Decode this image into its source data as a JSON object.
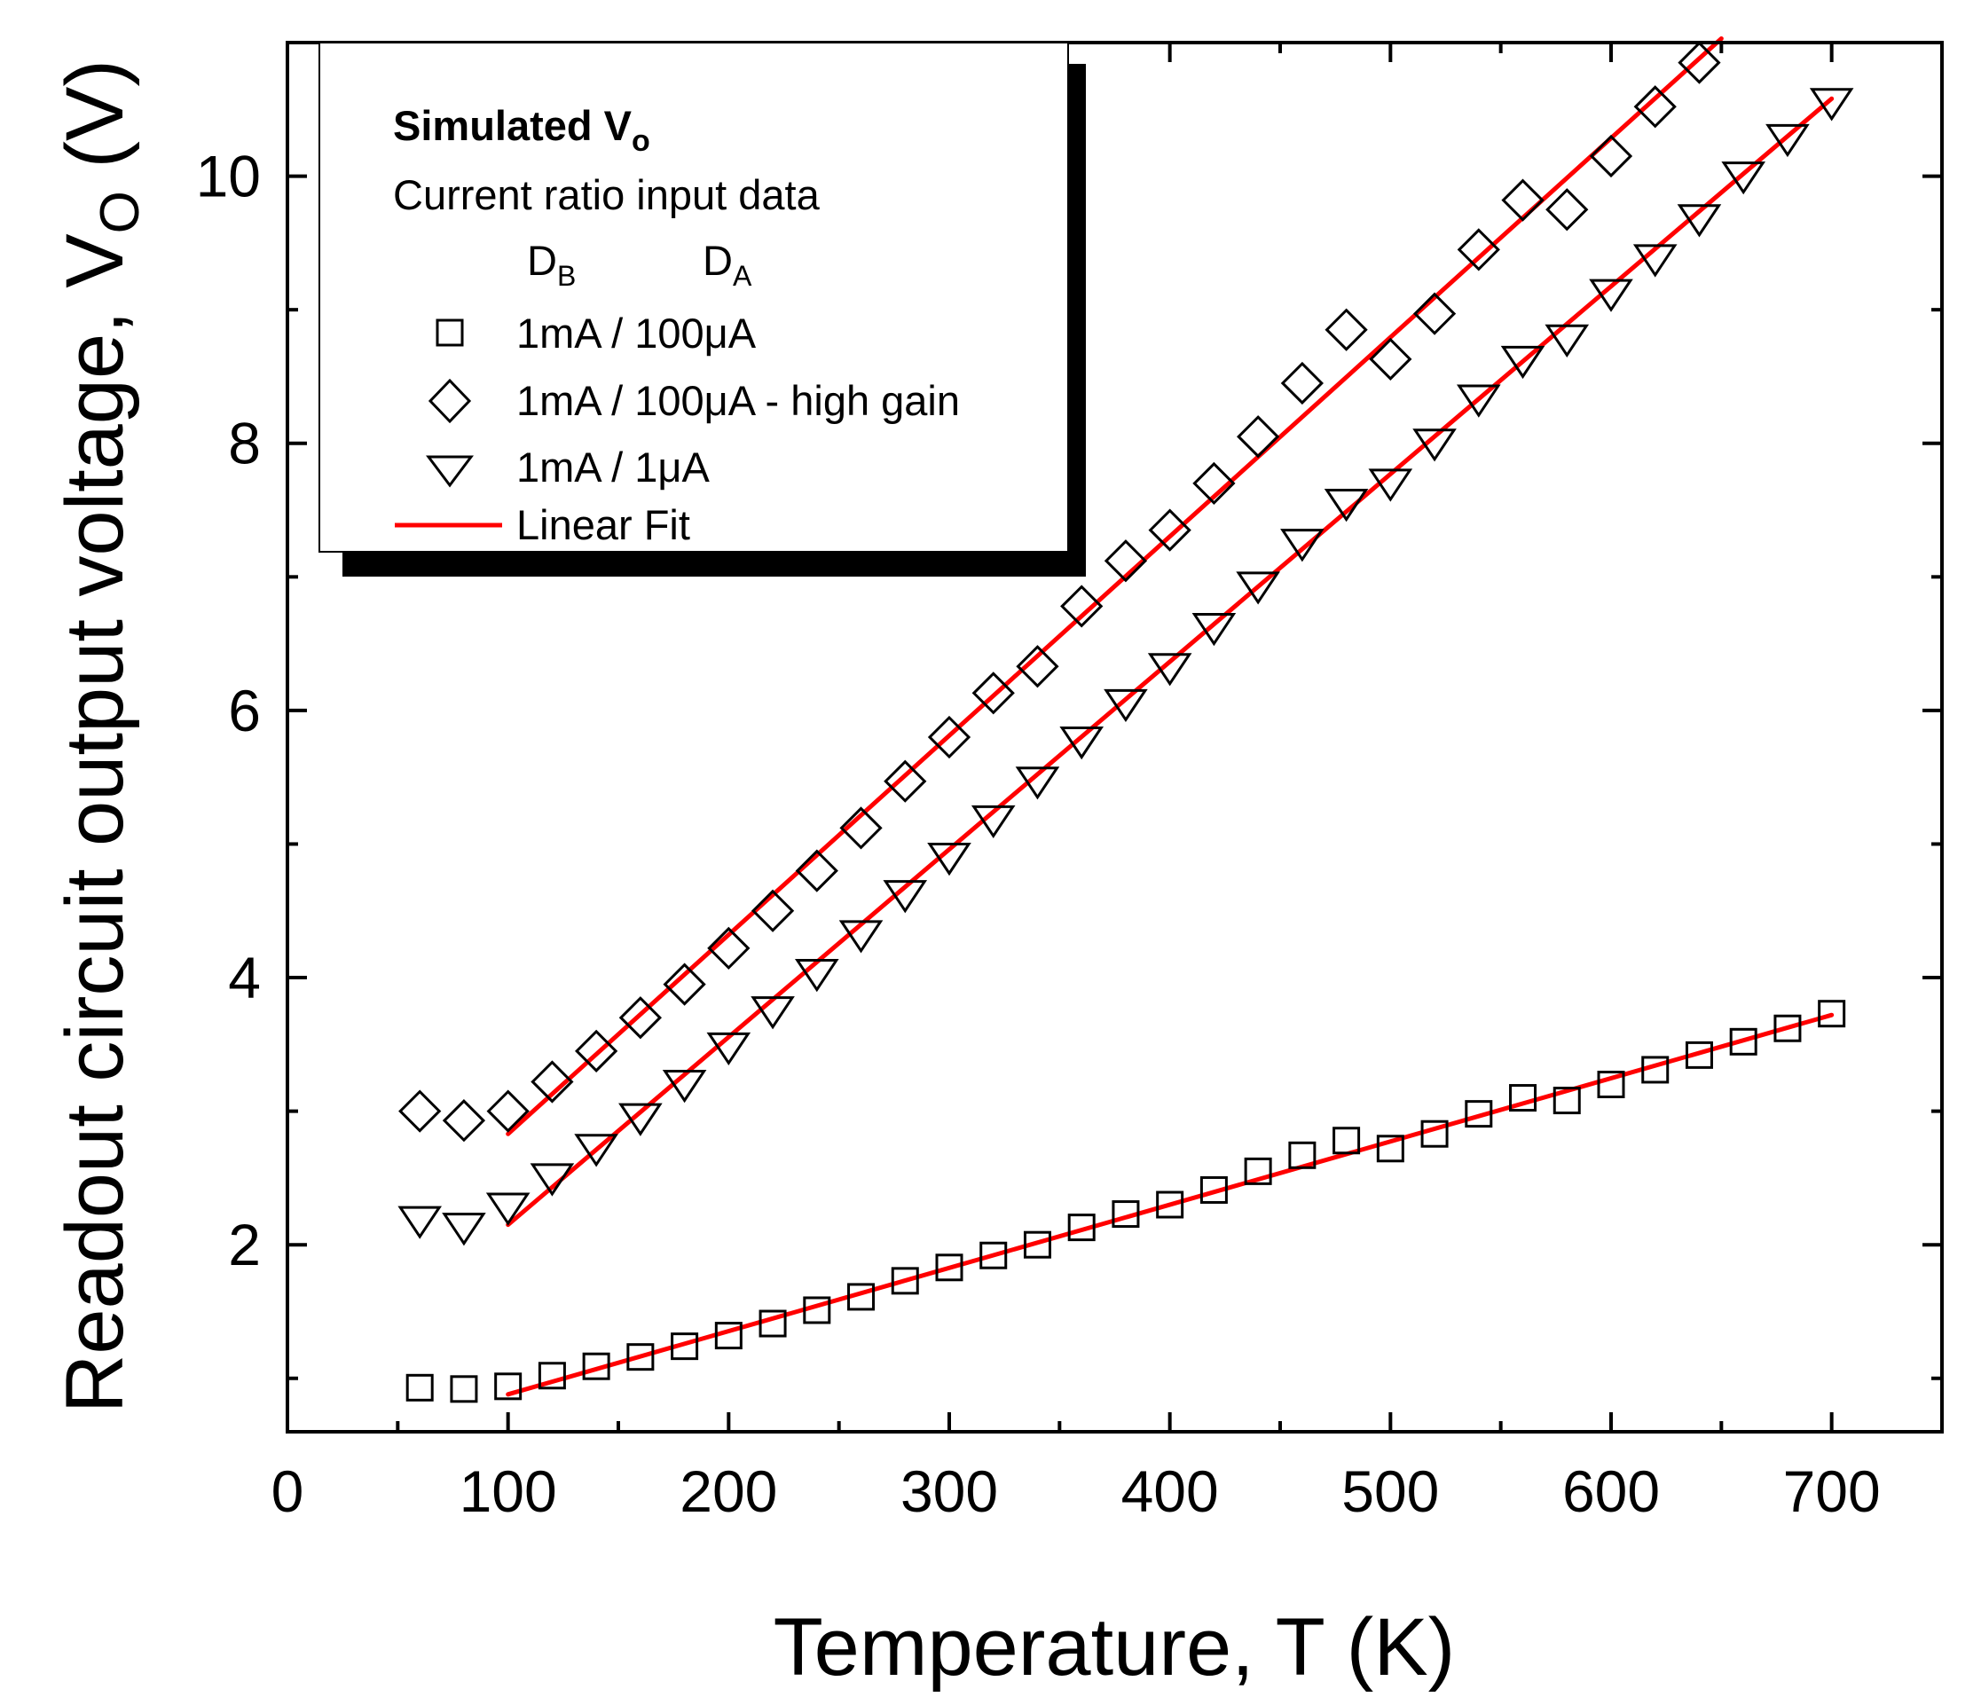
{
  "chart_data": {
    "type": "scatter",
    "title": "",
    "xlabel": "Temperature, T (K)",
    "ylabel_main": "Readout circuit output voltage, V",
    "ylabel_sub": "O",
    "ylabel_unit": " (V)",
    "xlim": [
      0,
      750
    ],
    "ylim": [
      0.6,
      11.0
    ],
    "x_ticks": [
      0,
      100,
      200,
      300,
      400,
      500,
      600,
      700
    ],
    "x_tick_labels": [
      "0",
      "100",
      "200",
      "300",
      "400",
      "500",
      "600",
      "700"
    ],
    "y_ticks": [
      2,
      4,
      6,
      8,
      10
    ],
    "y_tick_labels": [
      "2",
      "4",
      "6",
      "8",
      "10"
    ],
    "x_minor_ticks": [
      50,
      150,
      250,
      350,
      450,
      550,
      650
    ],
    "y_minor_ticks": [
      1,
      3,
      5,
      7,
      9
    ],
    "legend": {
      "title_main": "Simulated V",
      "title_sub": "o",
      "subtitle": "Current ratio input data",
      "col_b_main": "D",
      "col_b_sub": "B",
      "col_a_main": "D",
      "col_a_sub": "A",
      "entries": [
        {
          "marker": "square",
          "label": "1mA / 100μA"
        },
        {
          "marker": "diamond",
          "label": "1mA / 100μA - high gain"
        },
        {
          "marker": "triangle-down",
          "label": "1mA / 1μA"
        },
        {
          "marker": "line",
          "label": "Linear Fit"
        }
      ],
      "position": "top-left"
    },
    "fit_color": "#ff0000",
    "series": [
      {
        "name": "1mA / 100μA",
        "marker": "square",
        "x": [
          60,
          80,
          100,
          120,
          140,
          160,
          180,
          200,
          220,
          240,
          260,
          280,
          300,
          320,
          340,
          360,
          380,
          400,
          420,
          440,
          460,
          480,
          500,
          520,
          540,
          560,
          580,
          600,
          620,
          640,
          660,
          680,
          700
        ],
        "y": [
          0.93,
          0.92,
          0.94,
          1.02,
          1.09,
          1.16,
          1.24,
          1.32,
          1.41,
          1.51,
          1.61,
          1.73,
          1.83,
          1.92,
          2.0,
          2.13,
          2.23,
          2.3,
          2.41,
          2.55,
          2.67,
          2.78,
          2.72,
          2.83,
          2.98,
          3.1,
          3.08,
          3.2,
          3.31,
          3.42,
          3.52,
          3.62,
          3.73
        ],
        "fit": {
          "x": [
            100,
            700
          ],
          "y": [
            0.88,
            3.72
          ]
        }
      },
      {
        "name": "1mA / 100μA - high gain",
        "marker": "diamond",
        "x": [
          60,
          80,
          100,
          120,
          140,
          160,
          180,
          200,
          220,
          240,
          260,
          280,
          300,
          320,
          340,
          360,
          380,
          400,
          420,
          440,
          460,
          480,
          500,
          520,
          540,
          560,
          580,
          600,
          620,
          640
        ],
        "y": [
          3.0,
          2.93,
          3.0,
          3.22,
          3.45,
          3.7,
          3.95,
          4.22,
          4.5,
          4.8,
          5.12,
          5.47,
          5.8,
          6.13,
          6.33,
          6.78,
          7.12,
          7.35,
          7.7,
          8.05,
          8.45,
          8.85,
          8.63,
          8.97,
          9.45,
          9.82,
          9.75,
          10.15,
          10.52,
          10.85
        ],
        "fit": {
          "x": [
            100,
            650
          ],
          "y": [
            2.83,
            11.03
          ]
        }
      },
      {
        "name": "1mA / 1μA",
        "marker": "triangle-down",
        "x": [
          60,
          80,
          100,
          120,
          140,
          160,
          180,
          200,
          220,
          240,
          260,
          280,
          300,
          320,
          340,
          360,
          380,
          400,
          420,
          440,
          460,
          480,
          500,
          520,
          540,
          560,
          580,
          600,
          620,
          640,
          660,
          680,
          700
        ],
        "y": [
          2.18,
          2.13,
          2.28,
          2.5,
          2.72,
          2.95,
          3.2,
          3.48,
          3.75,
          4.03,
          4.32,
          4.62,
          4.9,
          5.18,
          5.47,
          5.77,
          6.05,
          6.32,
          6.62,
          6.93,
          7.25,
          7.55,
          7.7,
          8.0,
          8.33,
          8.62,
          8.78,
          9.12,
          9.38,
          9.68,
          10.0,
          10.28,
          10.55
        ],
        "fit": {
          "x": [
            100,
            700
          ],
          "y": [
            2.15,
            10.58
          ]
        }
      }
    ]
  }
}
